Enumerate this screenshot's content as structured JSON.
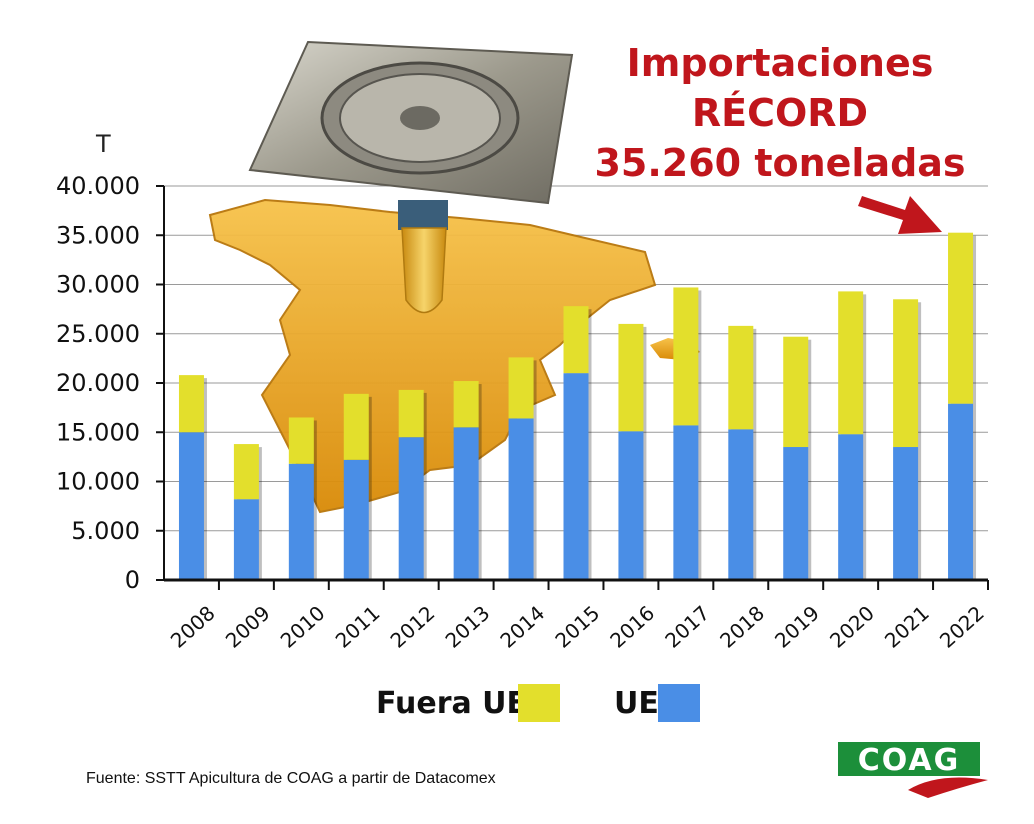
{
  "headline": {
    "line1": "Importaciones",
    "line2": "RÉCORD",
    "line3": "35.260 toneladas"
  },
  "colors": {
    "eu": "#4a8ee6",
    "non_eu": "#e3df2c",
    "headline": "#c0161c",
    "arrow": "#c0161c",
    "map": "#f0a010"
  },
  "legend": {
    "non_eu_label": "Fuera UE",
    "eu_label": "UE"
  },
  "source": "Fuente: SSTT Apicultura de COAG a partir de Datacomex",
  "logo": {
    "text": "COAG"
  },
  "decorations": [
    "drain-grate-icon",
    "spain-map-icon"
  ],
  "chart_data": {
    "type": "bar",
    "stacked": true,
    "title": "Importaciones RÉCORD 35.260 toneladas",
    "ylabel": "T",
    "xlabel": "",
    "ylim": [
      0,
      40000
    ],
    "yticks": [
      "0",
      "5.000",
      "10.000",
      "15.000",
      "20.000",
      "25.000",
      "30.000",
      "35.000",
      "40.000"
    ],
    "categories": [
      "2008",
      "2009",
      "2010",
      "2011",
      "2012",
      "2013",
      "2014",
      "2015",
      "2016",
      "2017",
      "2018",
      "2019",
      "2020",
      "2021",
      "2022"
    ],
    "series": [
      {
        "name": "UE",
        "values": [
          15000,
          8200,
          11800,
          12200,
          14500,
          15500,
          16400,
          21000,
          15100,
          15700,
          15300,
          13500,
          14800,
          13500,
          17900
        ]
      },
      {
        "name": "Fuera UE",
        "values": [
          5800,
          5600,
          4700,
          6700,
          4800,
          4700,
          6200,
          6800,
          10900,
          14000,
          10500,
          11200,
          14500,
          15000,
          17360
        ]
      }
    ],
    "grid": true,
    "legend_position": "bottom"
  }
}
